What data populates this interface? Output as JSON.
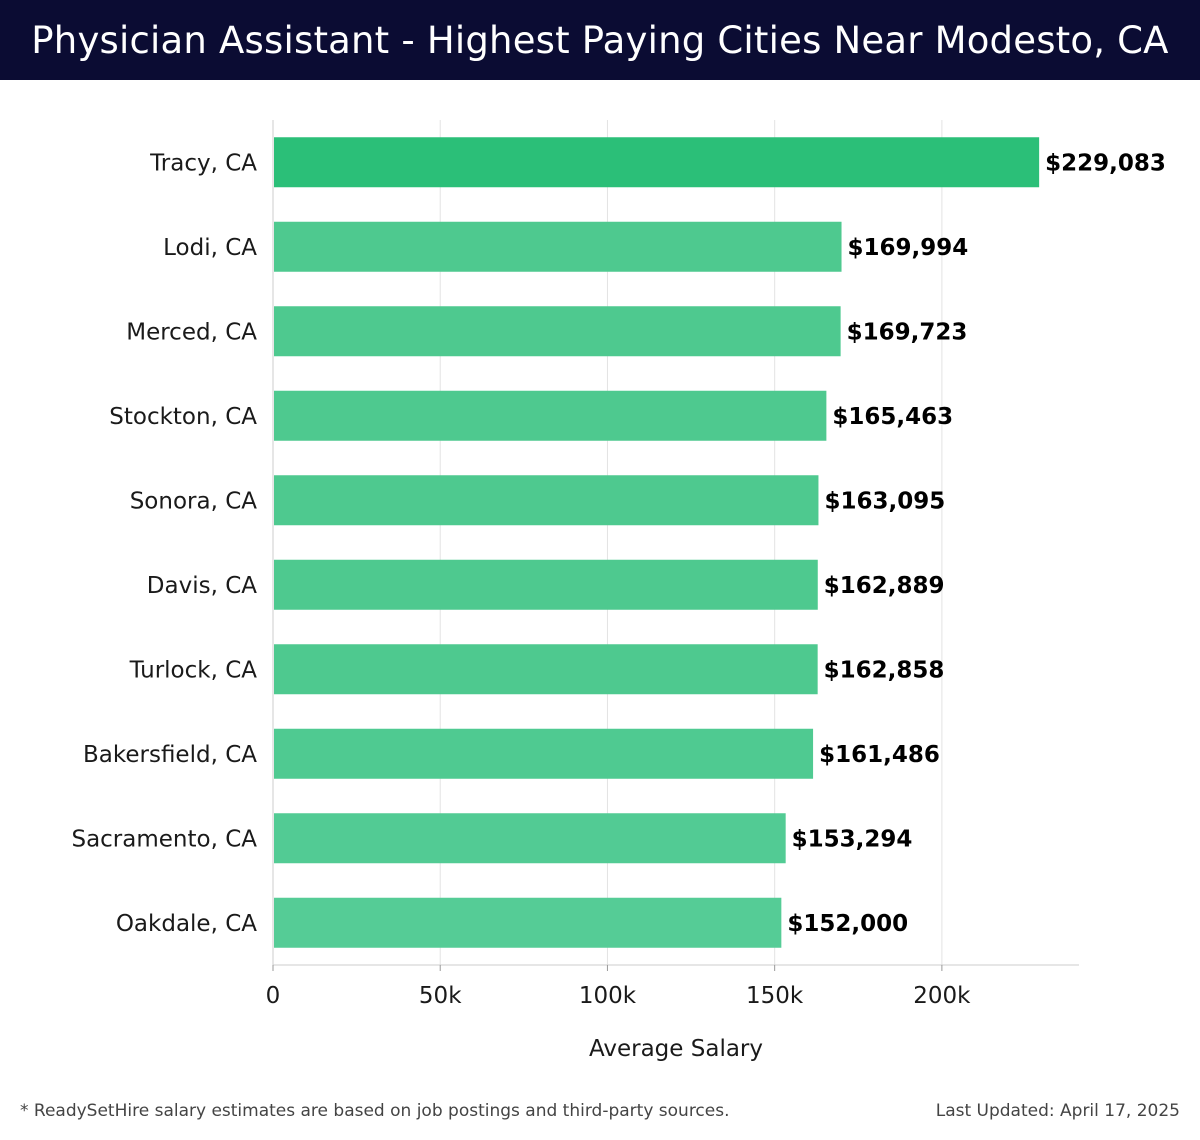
{
  "header": {
    "title": "Physician Assistant - Highest Paying Cities Near Modesto, CA",
    "background": "#0b0c33"
  },
  "chart_data": {
    "type": "bar",
    "orientation": "horizontal",
    "categories": [
      "Tracy, CA",
      "Lodi, CA",
      "Merced, CA",
      "Stockton, CA",
      "Sonora, CA",
      "Davis, CA",
      "Turlock, CA",
      "Bakersfield, CA",
      "Sacramento, CA",
      "Oakdale, CA"
    ],
    "values": [
      229083,
      169994,
      169723,
      165463,
      163095,
      162889,
      162858,
      161486,
      153294,
      152000
    ],
    "value_labels": [
      "$229,083",
      "$169,994",
      "$169,723",
      "$165,463",
      "$163,095",
      "$162,889",
      "$162,858",
      "$161,486",
      "$153,294",
      "$152,000"
    ],
    "xlabel": "Average Salary",
    "ylabel": "",
    "xlim": [
      0,
      241000
    ],
    "xticks": [
      0,
      50000,
      100000,
      150000,
      200000
    ],
    "xtick_labels": [
      "0",
      "50k",
      "100k",
      "150k",
      "200k"
    ],
    "grid": true,
    "colors": {
      "top_bar": "#2bbf78",
      "bars": [
        "#2bbf78",
        "#4ec98f",
        "#4ec98f",
        "#4ec98f",
        "#4ec98f",
        "#4ec98f",
        "#4ec98f",
        "#4fca91",
        "#52cb94",
        "#55cc96"
      ]
    }
  },
  "footer": {
    "note": "* ReadySetHire salary estimates are based on job postings and third-party sources.",
    "updated": "Last Updated: April 17, 2025"
  }
}
